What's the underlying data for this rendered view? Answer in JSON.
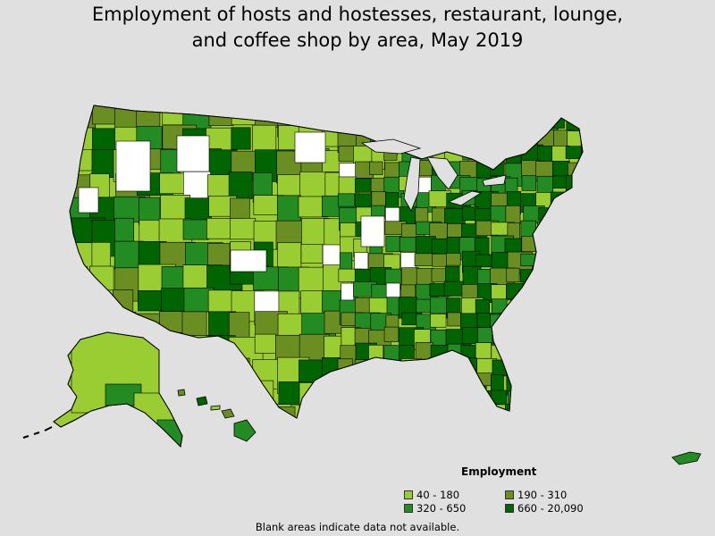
{
  "title_line1": "Employment of hosts and hostesses, restaurant, lounge,",
  "title_line2": "and coffee shop by area, May 2019",
  "legend": {
    "title": "Employment",
    "items": [
      {
        "label": "40 - 180",
        "color": "#9acd32"
      },
      {
        "label": "190 - 310",
        "color": "#6b8e23"
      },
      {
        "label": "320 - 650",
        "color": "#228b22"
      },
      {
        "label": "660 - 20,090",
        "color": "#006400"
      }
    ]
  },
  "footnote": "Blank areas indicate data not available.",
  "colors": {
    "background": "#e0e0e0",
    "no_data": "#ffffff",
    "border": "#000000"
  }
}
